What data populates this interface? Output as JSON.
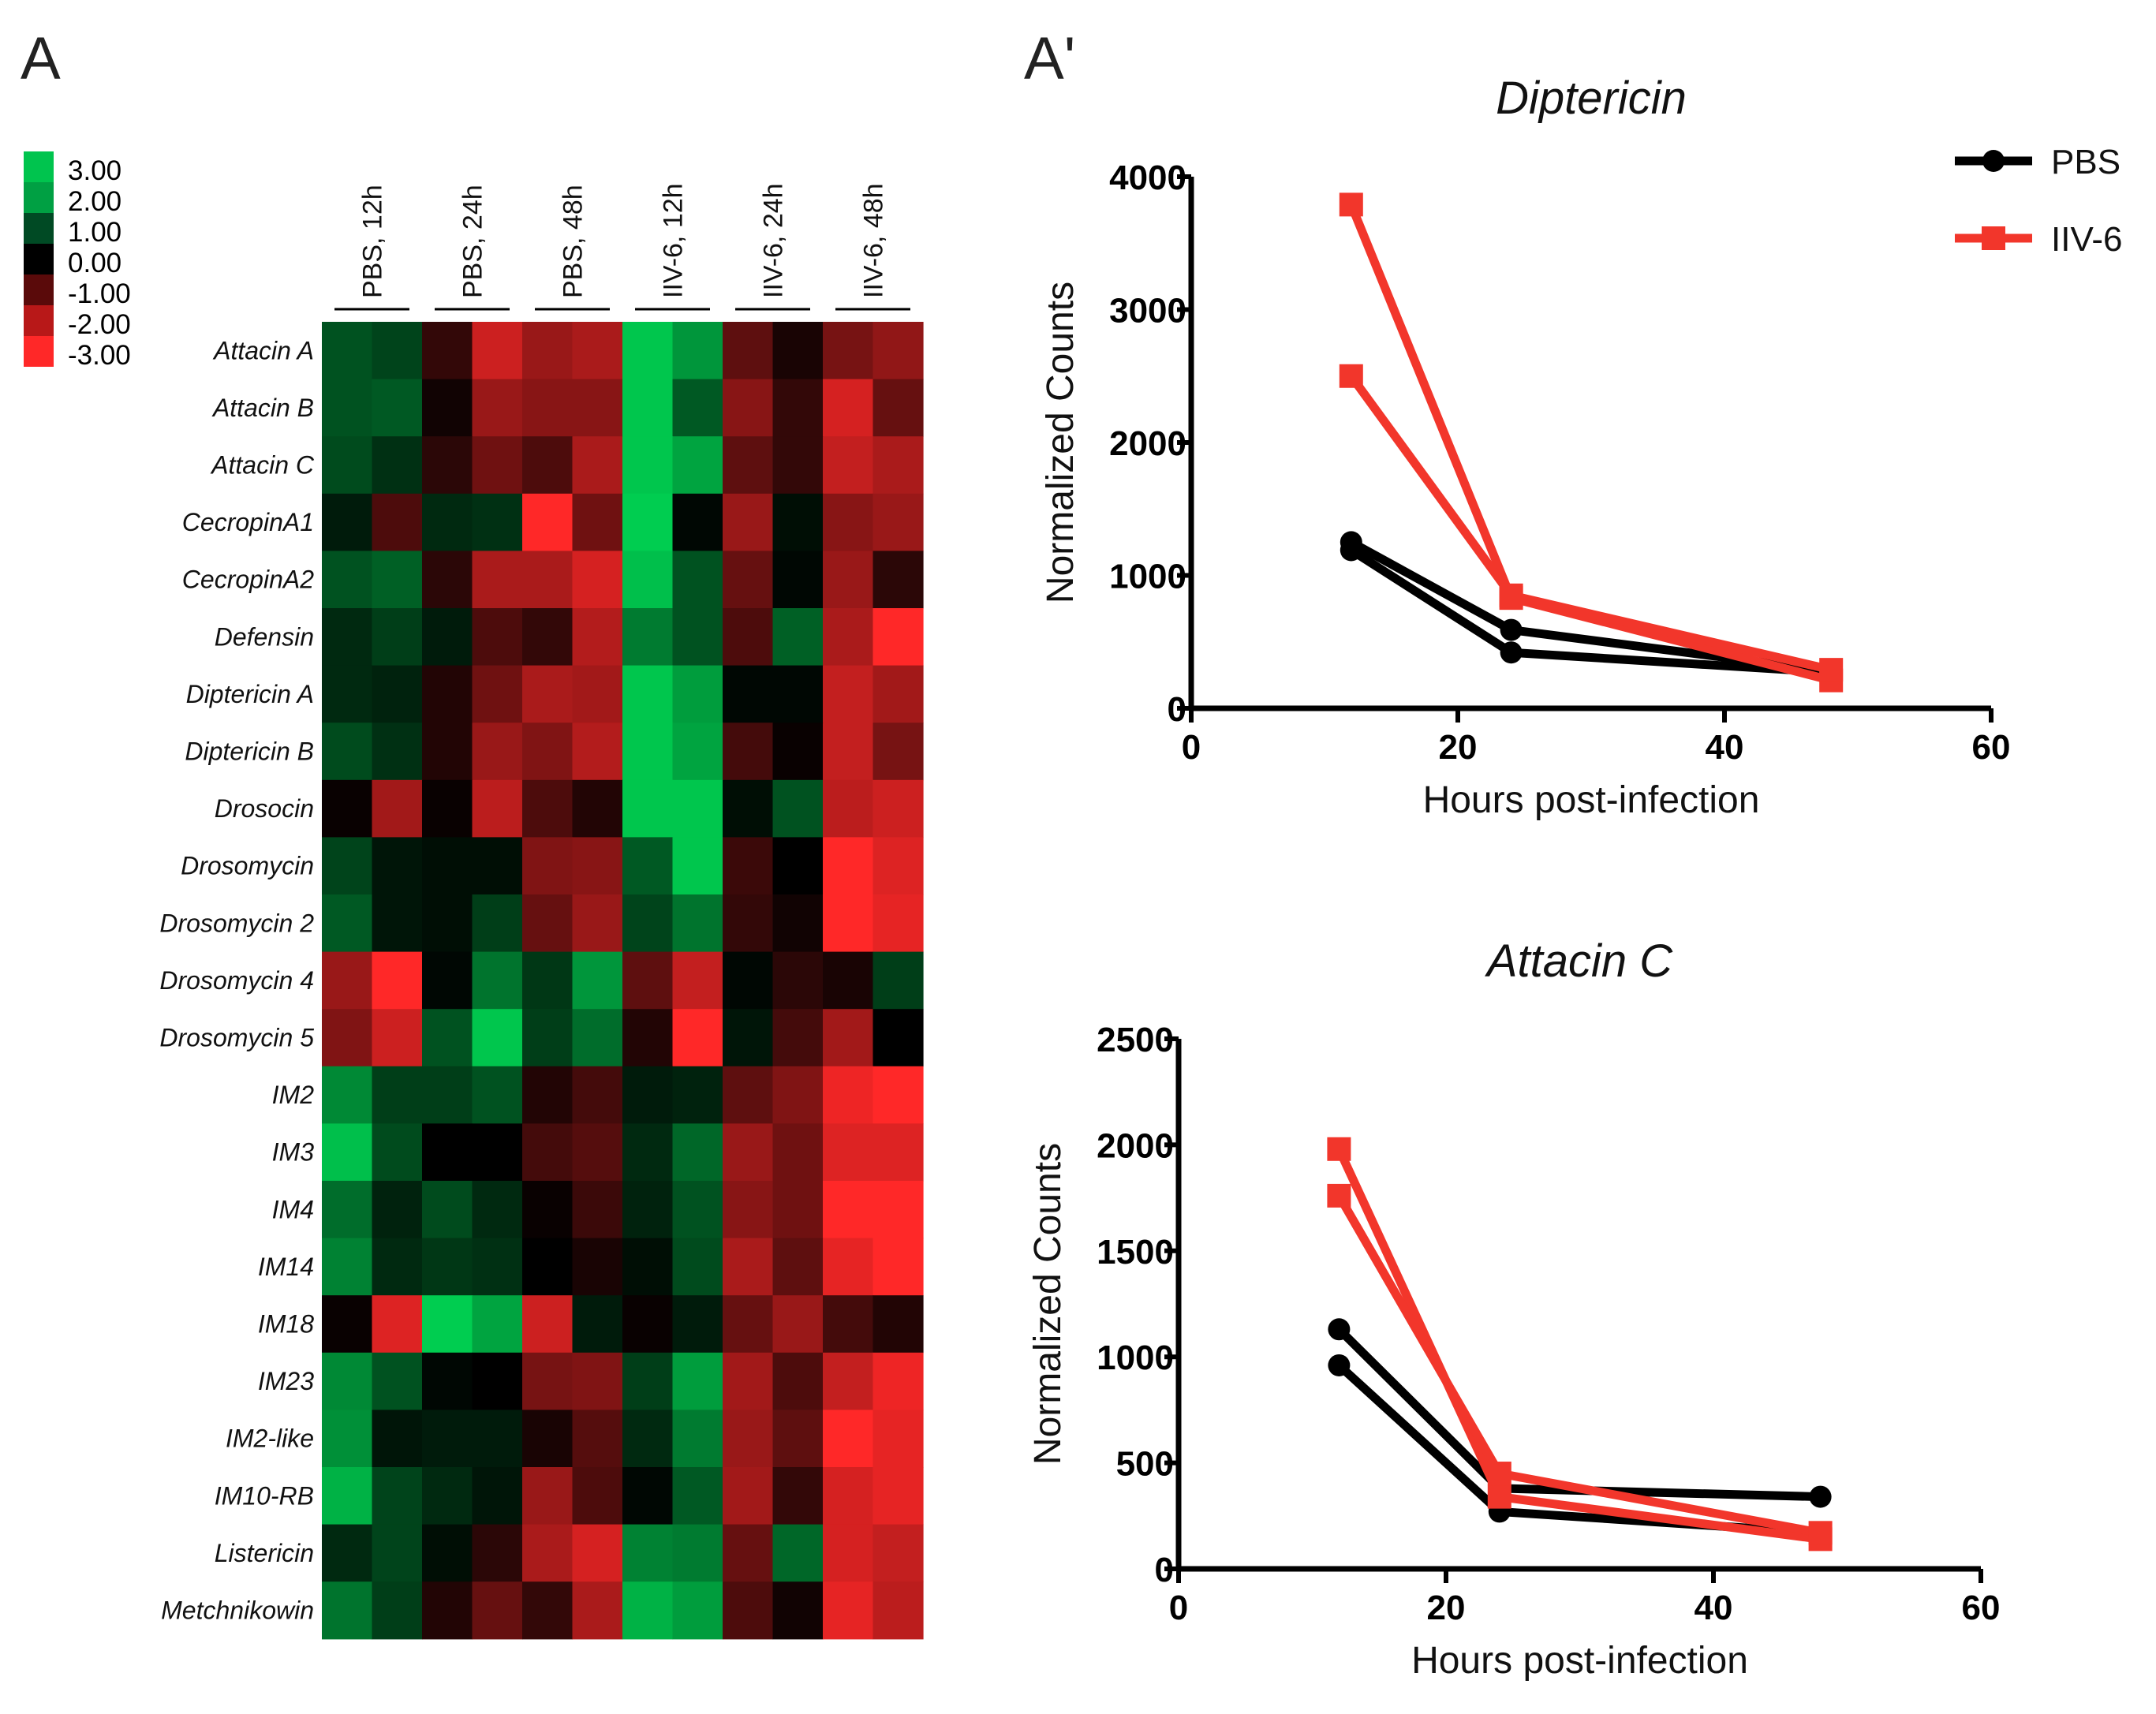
{
  "panel_labels": {
    "heatmap": "A",
    "line_charts": "A'"
  },
  "colors": {
    "pbs": "#000000",
    "iiv6": "#f2362b",
    "high": "#00c94f",
    "low": "#ff2a2a",
    "mid": "#000000"
  },
  "chart_data": [
    {
      "type": "heatmap",
      "color_scale": {
        "labels": [
          "3.00",
          "2.00",
          "1.00",
          "0.00",
          "-1.00",
          "-2.00",
          "-3.00"
        ],
        "values": [
          3,
          2,
          1,
          0,
          -1,
          -2,
          -3
        ],
        "colors": [
          "#00c44e",
          "#00a043",
          "#004a24",
          "#000000",
          "#5a0a0a",
          "#b81818",
          "#ff2828"
        ]
      },
      "groups": [
        "PBS, 12h",
        "PBS, 24h",
        "PBS, 48h",
        "IIV-6, 12h",
        "IIV-6, 24h",
        "IIV-6, 48h"
      ],
      "rows": [
        "Attacin A",
        "Attacin B",
        "Attacin C",
        "CecropinA1",
        "CecropinA2",
        "Defensin",
        "Diptericin A",
        "Diptericin B",
        "Drosocin",
        "Drosomycin",
        "Drosomycin 2",
        "Drosomycin 4",
        "Drosomycin 5",
        "IM2",
        "IM3",
        "IM4",
        "IM14",
        "IM18",
        "IM23",
        "IM2-like",
        "IM10-RB",
        "Listericin",
        "Metchnikowin"
      ],
      "values": [
        [
          1.2,
          1.0,
          -0.6,
          -2.4,
          -1.8,
          -2.0,
          2.9,
          2.2,
          -1.1,
          -0.3,
          -1.4,
          -1.7
        ],
        [
          1.2,
          1.3,
          -0.2,
          -1.8,
          -1.6,
          -1.6,
          2.9,
          1.3,
          -1.6,
          -0.6,
          -2.5,
          -1.2
        ],
        [
          1.1,
          0.7,
          -0.5,
          -1.3,
          -0.9,
          -2.0,
          2.9,
          2.4,
          -1.1,
          -0.6,
          -2.3,
          -2.0
        ],
        [
          0.4,
          -0.9,
          0.6,
          0.7,
          -3.0,
          -1.3,
          3.0,
          0.1,
          -1.8,
          0.2,
          -1.6,
          -1.8
        ],
        [
          1.2,
          1.4,
          -0.5,
          -2.0,
          -2.0,
          -2.5,
          2.8,
          1.2,
          -1.2,
          0.1,
          -1.8,
          -0.5
        ],
        [
          0.6,
          0.9,
          0.4,
          -0.9,
          -0.6,
          -2.1,
          1.8,
          1.2,
          -0.9,
          1.4,
          -2.0,
          -3.0
        ],
        [
          0.6,
          0.5,
          -0.4,
          -1.3,
          -2.0,
          -1.9,
          2.9,
          2.3,
          0.1,
          0.1,
          -2.3,
          -1.9
        ],
        [
          1.1,
          0.7,
          -0.4,
          -1.8,
          -1.5,
          -2.1,
          2.9,
          2.4,
          -0.8,
          -0.1,
          -2.3,
          -1.4
        ],
        [
          -0.1,
          -1.9,
          -0.1,
          -2.2,
          -0.9,
          -0.4,
          2.9,
          2.9,
          0.2,
          1.2,
          -2.2,
          -2.4
        ],
        [
          1.0,
          0.3,
          0.2,
          0.2,
          -1.5,
          -1.6,
          1.3,
          2.9,
          -0.7,
          0.0,
          -3.0,
          -2.6
        ],
        [
          1.3,
          0.3,
          0.2,
          0.9,
          -1.2,
          -1.8,
          1.0,
          1.7,
          -0.6,
          -0.2,
          -3.0,
          -2.7
        ],
        [
          -1.8,
          -3.0,
          0.1,
          1.7,
          0.8,
          2.2,
          -1.1,
          -2.3,
          0.1,
          -0.5,
          -0.3,
          0.9
        ],
        [
          -1.5,
          -2.4,
          1.2,
          2.9,
          0.9,
          1.6,
          -0.4,
          -3.0,
          0.3,
          -0.8,
          -1.9,
          0.0
        ],
        [
          2.0,
          0.9,
          0.9,
          1.2,
          -0.4,
          -0.8,
          0.4,
          0.5,
          -1.1,
          -1.5,
          -2.8,
          -3.0
        ],
        [
          2.8,
          1.1,
          0.0,
          0.0,
          -0.8,
          -1.0,
          0.6,
          1.5,
          -1.8,
          -1.3,
          -2.6,
          -2.6
        ],
        [
          1.6,
          0.5,
          1.1,
          0.6,
          -0.1,
          -0.7,
          0.5,
          1.2,
          -1.6,
          -1.3,
          -3.0,
          -3.0
        ],
        [
          1.9,
          0.6,
          0.8,
          0.7,
          0.0,
          -0.3,
          0.2,
          1.1,
          -2.0,
          -1.1,
          -2.7,
          -3.0
        ],
        [
          -0.1,
          -2.6,
          3.0,
          2.4,
          -2.4,
          0.4,
          -0.1,
          0.4,
          -1.2,
          -1.8,
          -0.8,
          -0.4
        ],
        [
          2.0,
          1.2,
          0.1,
          0.0,
          -1.4,
          -1.5,
          0.9,
          2.3,
          -1.9,
          -0.9,
          -2.3,
          -2.8
        ],
        [
          2.1,
          0.3,
          0.4,
          0.4,
          -0.3,
          -1.0,
          0.6,
          1.8,
          -1.8,
          -1.1,
          -3.0,
          -2.7
        ],
        [
          2.6,
          1.0,
          0.6,
          0.3,
          -1.8,
          -0.9,
          0.1,
          1.3,
          -1.9,
          -0.6,
          -2.5,
          -2.7
        ],
        [
          0.6,
          1.0,
          0.2,
          -0.5,
          -2.0,
          -2.5,
          1.9,
          1.8,
          -1.2,
          1.5,
          -2.5,
          -2.3
        ],
        [
          1.7,
          0.9,
          -0.4,
          -1.2,
          -0.6,
          -2.0,
          2.6,
          2.3,
          -0.9,
          -0.2,
          -2.7,
          -2.2
        ]
      ]
    },
    {
      "type": "line",
      "title": "Diptericin",
      "xlabel": "Hours post-infection",
      "ylabel": "Normalized Counts",
      "xlim": [
        0,
        60
      ],
      "ylim": [
        0,
        4000
      ],
      "xticks": [
        0,
        20,
        40,
        60
      ],
      "yticks": [
        0,
        1000,
        2000,
        3000,
        4000
      ],
      "legend": {
        "position": "top-right",
        "entries": [
          "PBS",
          "IIV-6"
        ]
      },
      "series": [
        {
          "name": "PBS",
          "group": "PBS",
          "marker": "circle",
          "x": [
            12,
            24,
            48
          ],
          "y": [
            1250,
            590,
            280
          ]
        },
        {
          "name": "PBS",
          "group": "PBS",
          "marker": "circle",
          "x": [
            12,
            24,
            48
          ],
          "y": [
            1190,
            420,
            270
          ]
        },
        {
          "name": "IIV-6",
          "group": "IIV-6",
          "marker": "square",
          "x": [
            12,
            24,
            48
          ],
          "y": [
            3790,
            830,
            210
          ]
        },
        {
          "name": "IIV-6",
          "group": "IIV-6",
          "marker": "square",
          "x": [
            12,
            24,
            48
          ],
          "y": [
            2500,
            850,
            290
          ]
        }
      ]
    },
    {
      "type": "line",
      "title": "Attacin C",
      "xlabel": "Hours post-infection",
      "ylabel": "Normalized Counts",
      "xlim": [
        0,
        60
      ],
      "ylim": [
        0,
        2500
      ],
      "xticks": [
        0,
        20,
        40,
        60
      ],
      "yticks": [
        0,
        500,
        1000,
        1500,
        2000,
        2500
      ],
      "series": [
        {
          "name": "PBS",
          "group": "PBS",
          "marker": "circle",
          "x": [
            12,
            24,
            48
          ],
          "y": [
            1130,
            380,
            340
          ]
        },
        {
          "name": "PBS",
          "group": "PBS",
          "marker": "circle",
          "x": [
            12,
            24,
            48
          ],
          "y": [
            960,
            270,
            170
          ]
        },
        {
          "name": "IIV-6",
          "group": "IIV-6",
          "marker": "square",
          "x": [
            12,
            24,
            48
          ],
          "y": [
            1980,
            340,
            140
          ]
        },
        {
          "name": "IIV-6",
          "group": "IIV-6",
          "marker": "square",
          "x": [
            12,
            24,
            48
          ],
          "y": [
            1760,
            450,
            170
          ]
        }
      ]
    }
  ]
}
